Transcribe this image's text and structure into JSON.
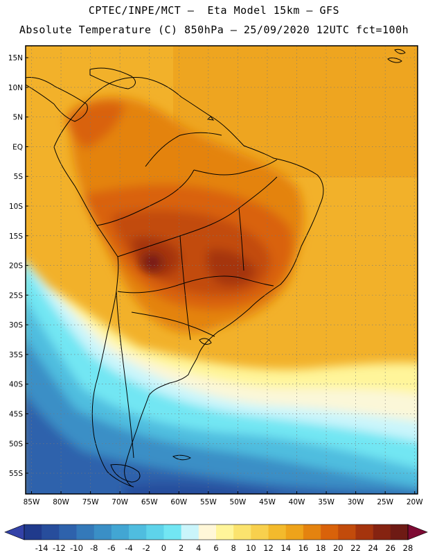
{
  "title_line1": "CPTEC/INPE/MCT —  Eta Model 15km — GFS",
  "title_line2": "Absolute Temperature (C) 850hPa — 25/09/2020 12UTC fct=100h",
  "lat_labels": [
    "15N",
    "10N",
    "5N",
    "EQ",
    "5S",
    "10S",
    "15S",
    "20S",
    "25S",
    "30S",
    "35S",
    "40S",
    "45S",
    "50S",
    "55S"
  ],
  "lat_values": [
    15,
    10,
    5,
    0,
    -5,
    -10,
    -15,
    -20,
    -25,
    -30,
    -35,
    -40,
    -45,
    -50,
    -55
  ],
  "lon_labels": [
    "85W",
    "80W",
    "75W",
    "70W",
    "65W",
    "60W",
    "55W",
    "50W",
    "45W",
    "40W",
    "35W",
    "30W",
    "25W",
    "20W"
  ],
  "lon_values": [
    -85,
    -80,
    -75,
    -70,
    -65,
    -60,
    -55,
    -50,
    -45,
    -40,
    -35,
    -30,
    -25,
    -20
  ],
  "colorbar": {
    "tick_labels": [
      "-14",
      "-12",
      "-10",
      "-8",
      "-6",
      "-4",
      "-2",
      "0",
      "2",
      "4",
      "6",
      "8",
      "10",
      "12",
      "14",
      "16",
      "18",
      "20",
      "22",
      "24",
      "26",
      "28"
    ],
    "colors": [
      "#203a8c",
      "#274d9c",
      "#2e62ac",
      "#3479b9",
      "#3a8fc6",
      "#42a6d3",
      "#4fbddf",
      "#5ed3ea",
      "#72e6f3",
      "#caf5fb",
      "#fff7d8",
      "#fff59a",
      "#fbe36e",
      "#f8d04d",
      "#f3ba2c",
      "#eea31a",
      "#e4830f",
      "#d9620a",
      "#c24b0b",
      "#a5340d",
      "#852311",
      "#6e1a14"
    ],
    "under_color": "#3342a8",
    "over_color": "#7d0a33"
  },
  "map_extent": {
    "lon_min": -86,
    "lon_max": -19.5,
    "lat_min": -58.5,
    "lat_max": 17
  }
}
